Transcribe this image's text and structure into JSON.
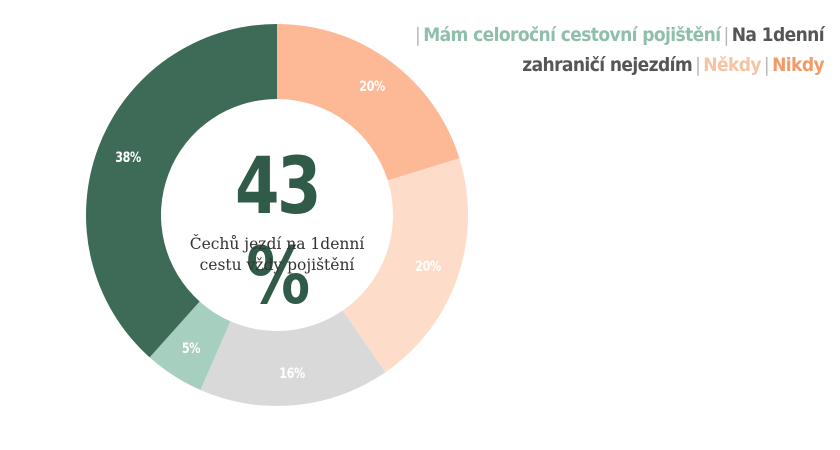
{
  "legend": {
    "items": [
      {
        "label": "Mám celoroční cestovní pojištění",
        "color": "#8fbfab"
      },
      {
        "label": "Na 1denní zahraničí nejezdím",
        "color": "#555555"
      },
      {
        "label": "Někdy",
        "color": "#f6c4a4"
      },
      {
        "label": "Nikdy",
        "color": "#f39a66"
      }
    ]
  },
  "center": {
    "value": "43 %",
    "caption_line1": "Čechů jezdí na 1denní",
    "caption_line2": "cestu vždy pojištění"
  },
  "chart_data": {
    "type": "pie",
    "variant": "donut",
    "title": "43 % Čechů jezdí na 1denní cestu vždy pojištění",
    "start_angle": "12 o'clock, clockwise",
    "slices": [
      {
        "label": "Nikdy",
        "value": 20,
        "display": "20%",
        "color": "#fdb995"
      },
      {
        "label": "Někdy",
        "value": 20,
        "display": "20%",
        "color": "#fddcca"
      },
      {
        "label": "Na 1denní zahraničí nejezdím",
        "value": 16,
        "display": "16%",
        "color": "#d9d9d9"
      },
      {
        "label": "Mám celoroční cestovní pojištění",
        "value": 5,
        "display": "5%",
        "color": "#a6cfbf"
      },
      {
        "label": "Vždy pojištění (1denní)",
        "value": 38,
        "display": "38%",
        "color": "#3d6b58"
      }
    ],
    "legend_position": "top-right"
  }
}
